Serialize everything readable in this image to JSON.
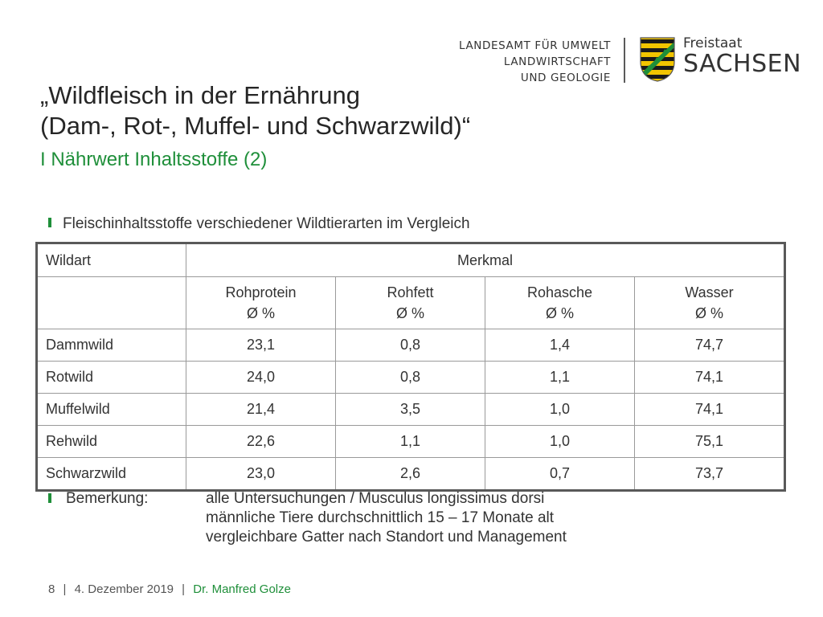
{
  "header": {
    "agency_lines": [
      "LANDESAMT FÜR UMWELT",
      "LANDWIRTSCHAFT",
      "UND GEOLOGIE"
    ],
    "state_line1": "Freistaat",
    "state_line2": "SACHSEN",
    "crest_icon": "saxony-coat-of-arms-icon",
    "colors": {
      "crest_yellow": "#f2c500",
      "crest_black": "#1a1a1a",
      "crest_green": "#1f8f3a"
    }
  },
  "title": {
    "line1": "„Wildfleisch in der Ernährung",
    "line2": "(Dam-, Rot-, Muffel- und Schwarzwild)“",
    "subtitle": "I Nährwert Inhaltsstoffe (2)"
  },
  "lead": "Fleischinhaltsstoffe verschiedener Wildtierarten im Vergleich",
  "table": {
    "col_wildart": "Wildart",
    "col_merkmal": "Merkmal",
    "sub_headers": [
      {
        "name": "Rohprotein",
        "unit": "Ø %"
      },
      {
        "name": "Rohfett",
        "unit": "Ø %"
      },
      {
        "name": "Rohasche",
        "unit": "Ø %"
      },
      {
        "name": "Wasser",
        "unit": "Ø %"
      }
    ],
    "rows": [
      {
        "wildart": "Dammwild",
        "values": [
          "23,1",
          "0,8",
          "1,4",
          "74,7"
        ]
      },
      {
        "wildart": "Rotwild",
        "values": [
          "24,0",
          "0,8",
          "1,1",
          "74,1"
        ]
      },
      {
        "wildart": "Muffelwild",
        "values": [
          "21,4",
          "3,5",
          "1,0",
          "74,1"
        ]
      },
      {
        "wildart": "Rehwild",
        "values": [
          "22,6",
          "1,1",
          "1,0",
          "75,1"
        ]
      },
      {
        "wildart": "Schwarzwild",
        "values": [
          "23,0",
          "2,6",
          "0,7",
          "73,7"
        ]
      }
    ]
  },
  "remark": {
    "label": "Bemerkung:",
    "lines": [
      "alle Untersuchungen / Musculus longissimus dorsi",
      "männliche Tiere durchschnittlich 15 – 17 Monate alt",
      "vergleichbare Gatter nach Standort und Management"
    ]
  },
  "footer": {
    "page": "8",
    "separator": "|",
    "date": "4. Dezember 2019",
    "author": "Dr. Manfred Golze"
  }
}
